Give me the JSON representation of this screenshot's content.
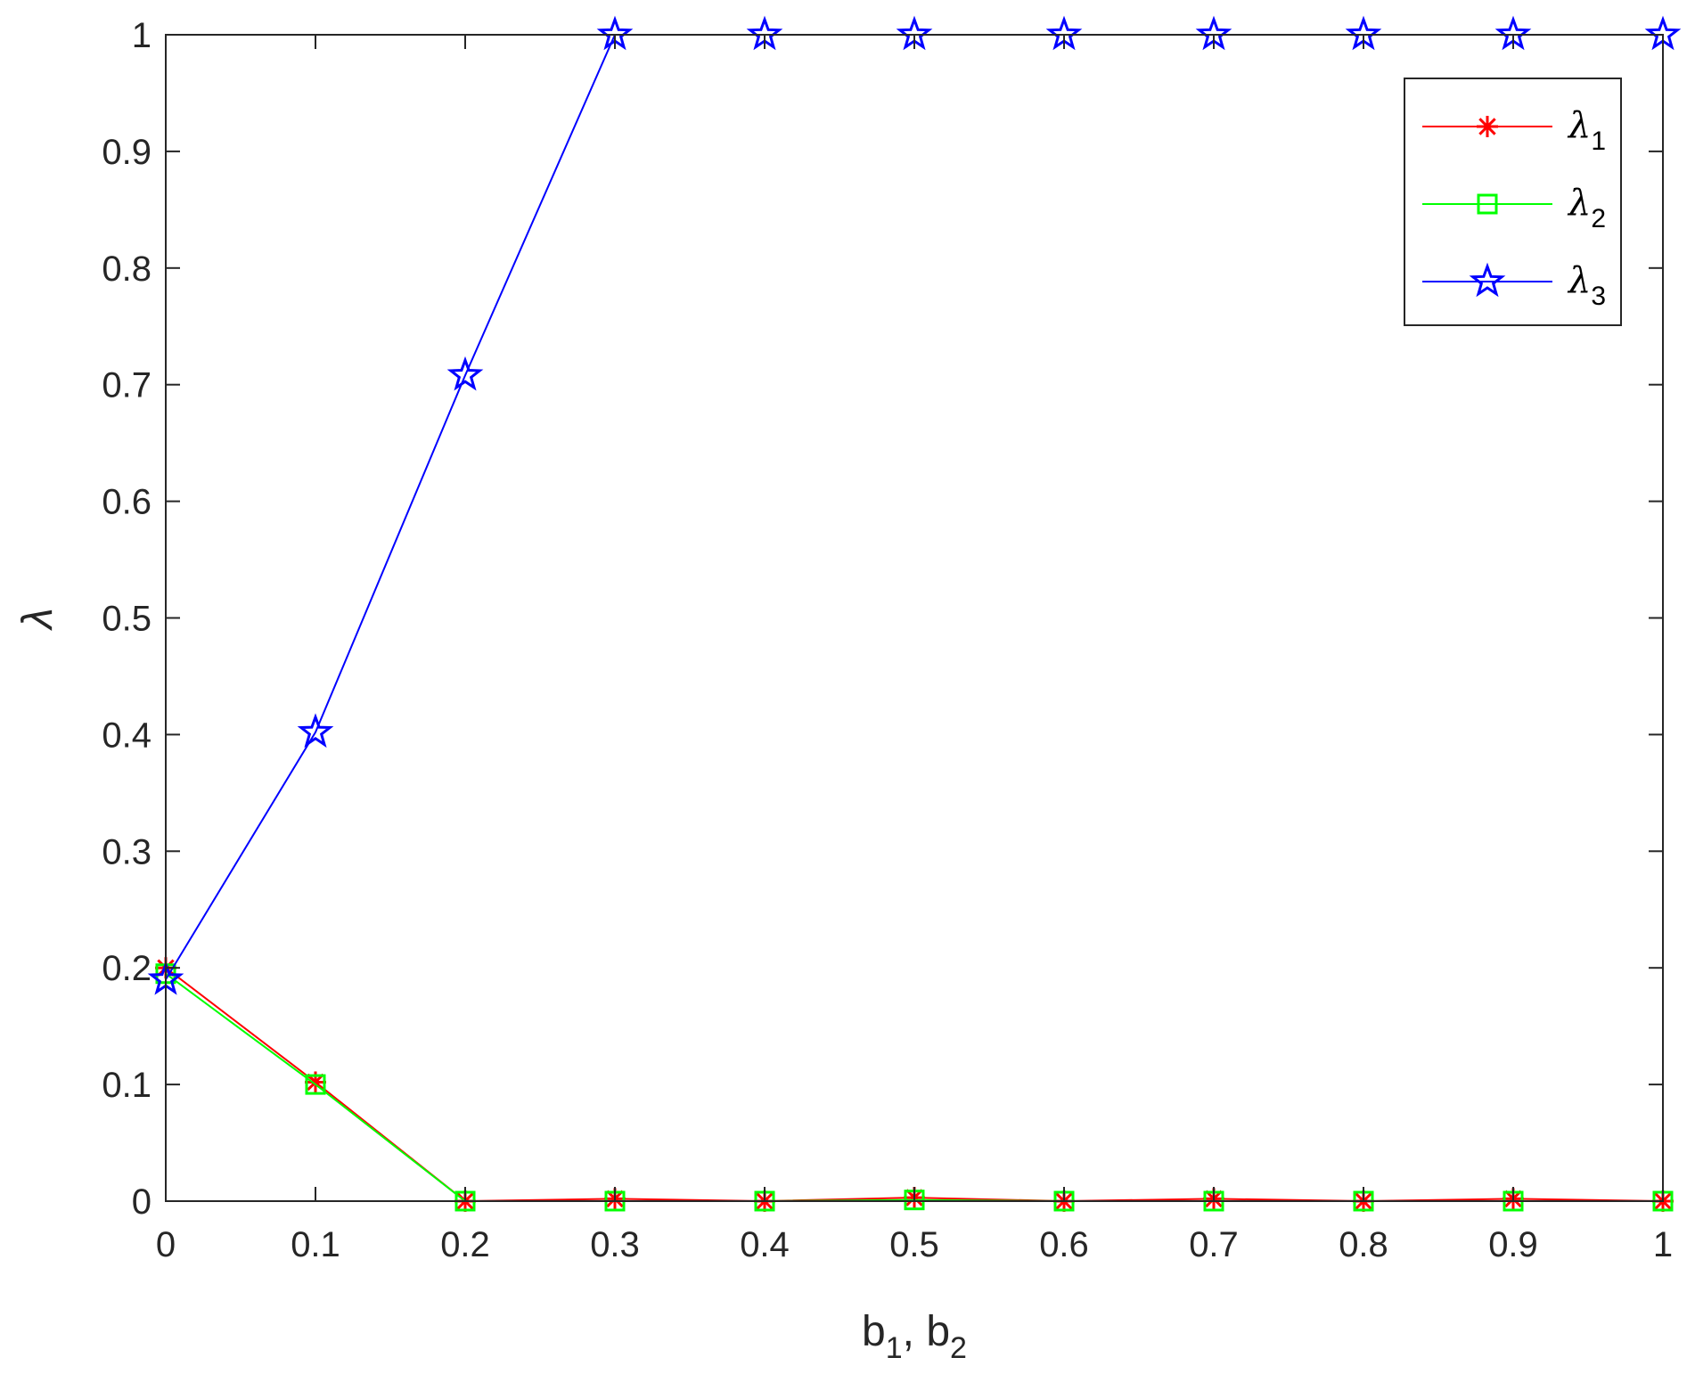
{
  "chart_data": {
    "type": "line",
    "title": "",
    "xlabel": "b_1, b_2",
    "xlabel_parts": {
      "b1_base": "b",
      "b1_sub": "1",
      "sep": ", ",
      "b2_base": "b",
      "b2_sub": "2"
    },
    "ylabel": "λ",
    "xlim": [
      0,
      1
    ],
    "ylim": [
      0,
      1
    ],
    "xticks": [
      0,
      0.1,
      0.2,
      0.3,
      0.4,
      0.5,
      0.6,
      0.7,
      0.8,
      0.9,
      1
    ],
    "xtick_labels": [
      "0",
      "0.1",
      "0.2",
      "0.3",
      "0.4",
      "0.5",
      "0.6",
      "0.7",
      "0.8",
      "0.9",
      "1"
    ],
    "yticks": [
      0,
      0.1,
      0.2,
      0.3,
      0.4,
      0.5,
      0.6,
      0.7,
      0.8,
      0.9,
      1
    ],
    "ytick_labels": [
      "0",
      "0.1",
      "0.2",
      "0.3",
      "0.4",
      "0.5",
      "0.6",
      "0.7",
      "0.8",
      "0.9",
      "1"
    ],
    "grid": false,
    "legend_position": "top-right",
    "x": [
      0,
      0.1,
      0.2,
      0.3,
      0.4,
      0.5,
      0.6,
      0.7,
      0.8,
      0.9,
      1
    ],
    "series": [
      {
        "name": "λ1",
        "name_base": "λ",
        "name_sub": "1",
        "color": "#ff0000",
        "marker": "asterisk",
        "values": [
          0.2,
          0.102,
          0.0,
          0.002,
          0.0,
          0.003,
          0.0,
          0.002,
          0.0,
          0.002,
          0.0
        ]
      },
      {
        "name": "λ2",
        "name_base": "λ",
        "name_sub": "2",
        "color": "#00ff00",
        "marker": "square",
        "values": [
          0.195,
          0.1,
          0.0,
          0.0,
          0.0,
          0.001,
          0.0,
          0.0,
          0.0,
          0.0,
          0.0
        ]
      },
      {
        "name": "λ3",
        "name_base": "λ",
        "name_sub": "3",
        "color": "#0000ff",
        "marker": "pentagram",
        "values": [
          0.19,
          0.402,
          0.708,
          1.0,
          1.0,
          1.0,
          1.0,
          1.0,
          1.0,
          1.0,
          1.0
        ]
      }
    ]
  }
}
